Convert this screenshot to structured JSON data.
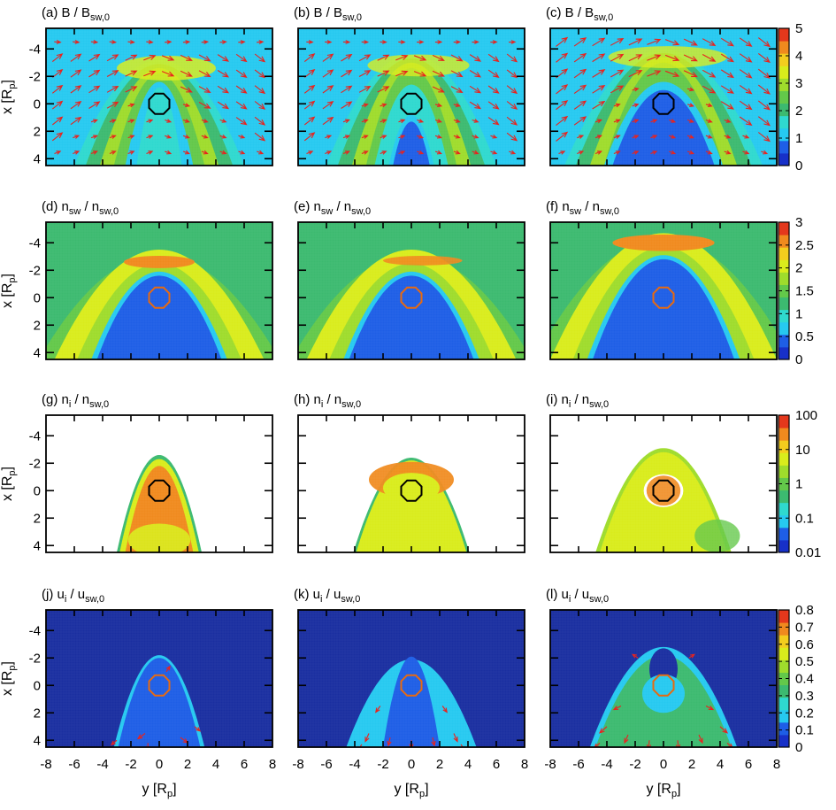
{
  "figure": {
    "panels": [
      {
        "label": "(a)",
        "q": "B",
        "sub1": "",
        "den": "B",
        "sub2": "sw,0",
        "row": 0,
        "col": 0,
        "circle": "#000000",
        "style": "a"
      },
      {
        "label": "(b)",
        "q": "B",
        "sub1": "",
        "den": "B",
        "sub2": "sw,0",
        "row": 0,
        "col": 1,
        "circle": "#000000",
        "style": "b"
      },
      {
        "label": "(c)",
        "q": "B",
        "sub1": "",
        "den": "B",
        "sub2": "sw,0",
        "row": 0,
        "col": 2,
        "circle": "#000000",
        "style": "c"
      },
      {
        "label": "(d)",
        "q": "n",
        "sub1": "sw",
        "den": "n",
        "sub2": "sw,0",
        "row": 1,
        "col": 0,
        "circle": "#e86a10",
        "style": "d"
      },
      {
        "label": "(e)",
        "q": "n",
        "sub1": "sw",
        "den": "n",
        "sub2": "sw,0",
        "row": 1,
        "col": 1,
        "circle": "#e86a10",
        "style": "e"
      },
      {
        "label": "(f)",
        "q": "n",
        "sub1": "sw",
        "den": "n",
        "sub2": "sw,0",
        "row": 1,
        "col": 2,
        "circle": "#e86a10",
        "style": "f"
      },
      {
        "label": "(g)",
        "q": "n",
        "sub1": "i",
        "den": "n",
        "sub2": "sw,0",
        "row": 2,
        "col": 0,
        "circle": "#000000",
        "style": "g"
      },
      {
        "label": "(h)",
        "q": "n",
        "sub1": "i",
        "den": "n",
        "sub2": "sw,0",
        "row": 2,
        "col": 1,
        "circle": "#000000",
        "style": "h"
      },
      {
        "label": "(i)",
        "q": "n",
        "sub1": "i",
        "den": "n",
        "sub2": "sw,0",
        "row": 2,
        "col": 2,
        "circle": "#000000",
        "style": "i"
      },
      {
        "label": "(j)",
        "q": "u",
        "sub1": "i",
        "den": "u",
        "sub2": "sw,0",
        "row": 3,
        "col": 0,
        "circle": "#e86a10",
        "style": "j"
      },
      {
        "label": "(k)",
        "q": "u",
        "sub1": "i",
        "den": "u",
        "sub2": "sw,0",
        "row": 3,
        "col": 1,
        "circle": "#e86a10",
        "style": "k"
      },
      {
        "label": "(l)",
        "q": "u",
        "sub1": "i",
        "den": "u",
        "sub2": "sw,0",
        "row": 3,
        "col": 2,
        "circle": "#e86a10",
        "style": "l"
      }
    ],
    "colorbars": [
      {
        "row": 0,
        "labels": [
          "5",
          "4",
          "3",
          "2",
          "1",
          "0"
        ]
      },
      {
        "row": 1,
        "labels": [
          "3",
          "2.5",
          "2",
          "1.5",
          "1",
          "0.5",
          "0"
        ]
      },
      {
        "row": 2,
        "labels": [
          "100",
          "10",
          "1",
          "0.1",
          "0.01"
        ]
      },
      {
        "row": 3,
        "labels": [
          "0.8",
          "0.7",
          "0.6",
          "0.5",
          "0.4",
          "0.3",
          "0.2",
          "0.1",
          "0"
        ]
      }
    ],
    "colormap": [
      "#1730c8",
      "#1e5ee6",
      "#26c9f0",
      "#2fd9cf",
      "#3cba70",
      "#63c84a",
      "#9fdc2c",
      "#d9ec1c",
      "#f3cd1e",
      "#f08a1e",
      "#e4381c"
    ],
    "y_axis_label": "x [R",
    "y_axis_label_sub": "p",
    "y_axis_label_end": "]",
    "x_axis_label": "y [R",
    "x_axis_label_sub": "p",
    "x_axis_label_end": "]",
    "x_tick_labels": [
      "-8",
      "-6",
      "-4",
      "-2",
      "0",
      "2",
      "4",
      "6",
      "8"
    ],
    "y_tick_labels": [
      "-4",
      "-2",
      "0",
      "2",
      "4"
    ],
    "arrow_color": "#e8231e",
    "background_color": "#ffffff"
  },
  "chart_data": {
    "type": "heatmap",
    "panels": [
      "(a)",
      "(b)",
      "(c)",
      "(d)",
      "(e)",
      "(f)",
      "(g)",
      "(h)",
      "(i)",
      "(j)",
      "(k)",
      "(l)"
    ],
    "x_axis": {
      "label": "y [Rp]",
      "range": [
        -8,
        8
      ],
      "ticks": [
        -8,
        -6,
        -4,
        -2,
        0,
        2,
        4,
        6,
        8
      ]
    },
    "y_axis": {
      "label": "x [Rp]",
      "range": [
        -5.5,
        4.5
      ],
      "ticks": [
        -4,
        -2,
        0,
        2,
        4
      ],
      "inverted": true
    },
    "rows": [
      {
        "quantity": "B / Bsw,0",
        "colorbar_range": [
          0,
          5
        ],
        "colorbar_ticks": [
          0,
          1,
          2,
          3,
          4,
          5
        ],
        "scale": "linear"
      },
      {
        "quantity": "nsw / nsw,0",
        "colorbar_range": [
          0,
          3
        ],
        "colorbar_ticks": [
          0,
          0.5,
          1,
          1.5,
          2,
          2.5,
          3
        ],
        "scale": "linear"
      },
      {
        "quantity": "ni / nsw,0",
        "colorbar_range": [
          0.01,
          100
        ],
        "colorbar_ticks": [
          0.01,
          0.1,
          1,
          10,
          100
        ],
        "scale": "log"
      },
      {
        "quantity": "ui / usw,0",
        "colorbar_range": [
          0,
          0.8
        ],
        "colorbar_ticks": [
          0,
          0.1,
          0.2,
          0.3,
          0.4,
          0.5,
          0.6,
          0.7,
          0.8
        ],
        "scale": "linear"
      }
    ],
    "grid": false
  }
}
